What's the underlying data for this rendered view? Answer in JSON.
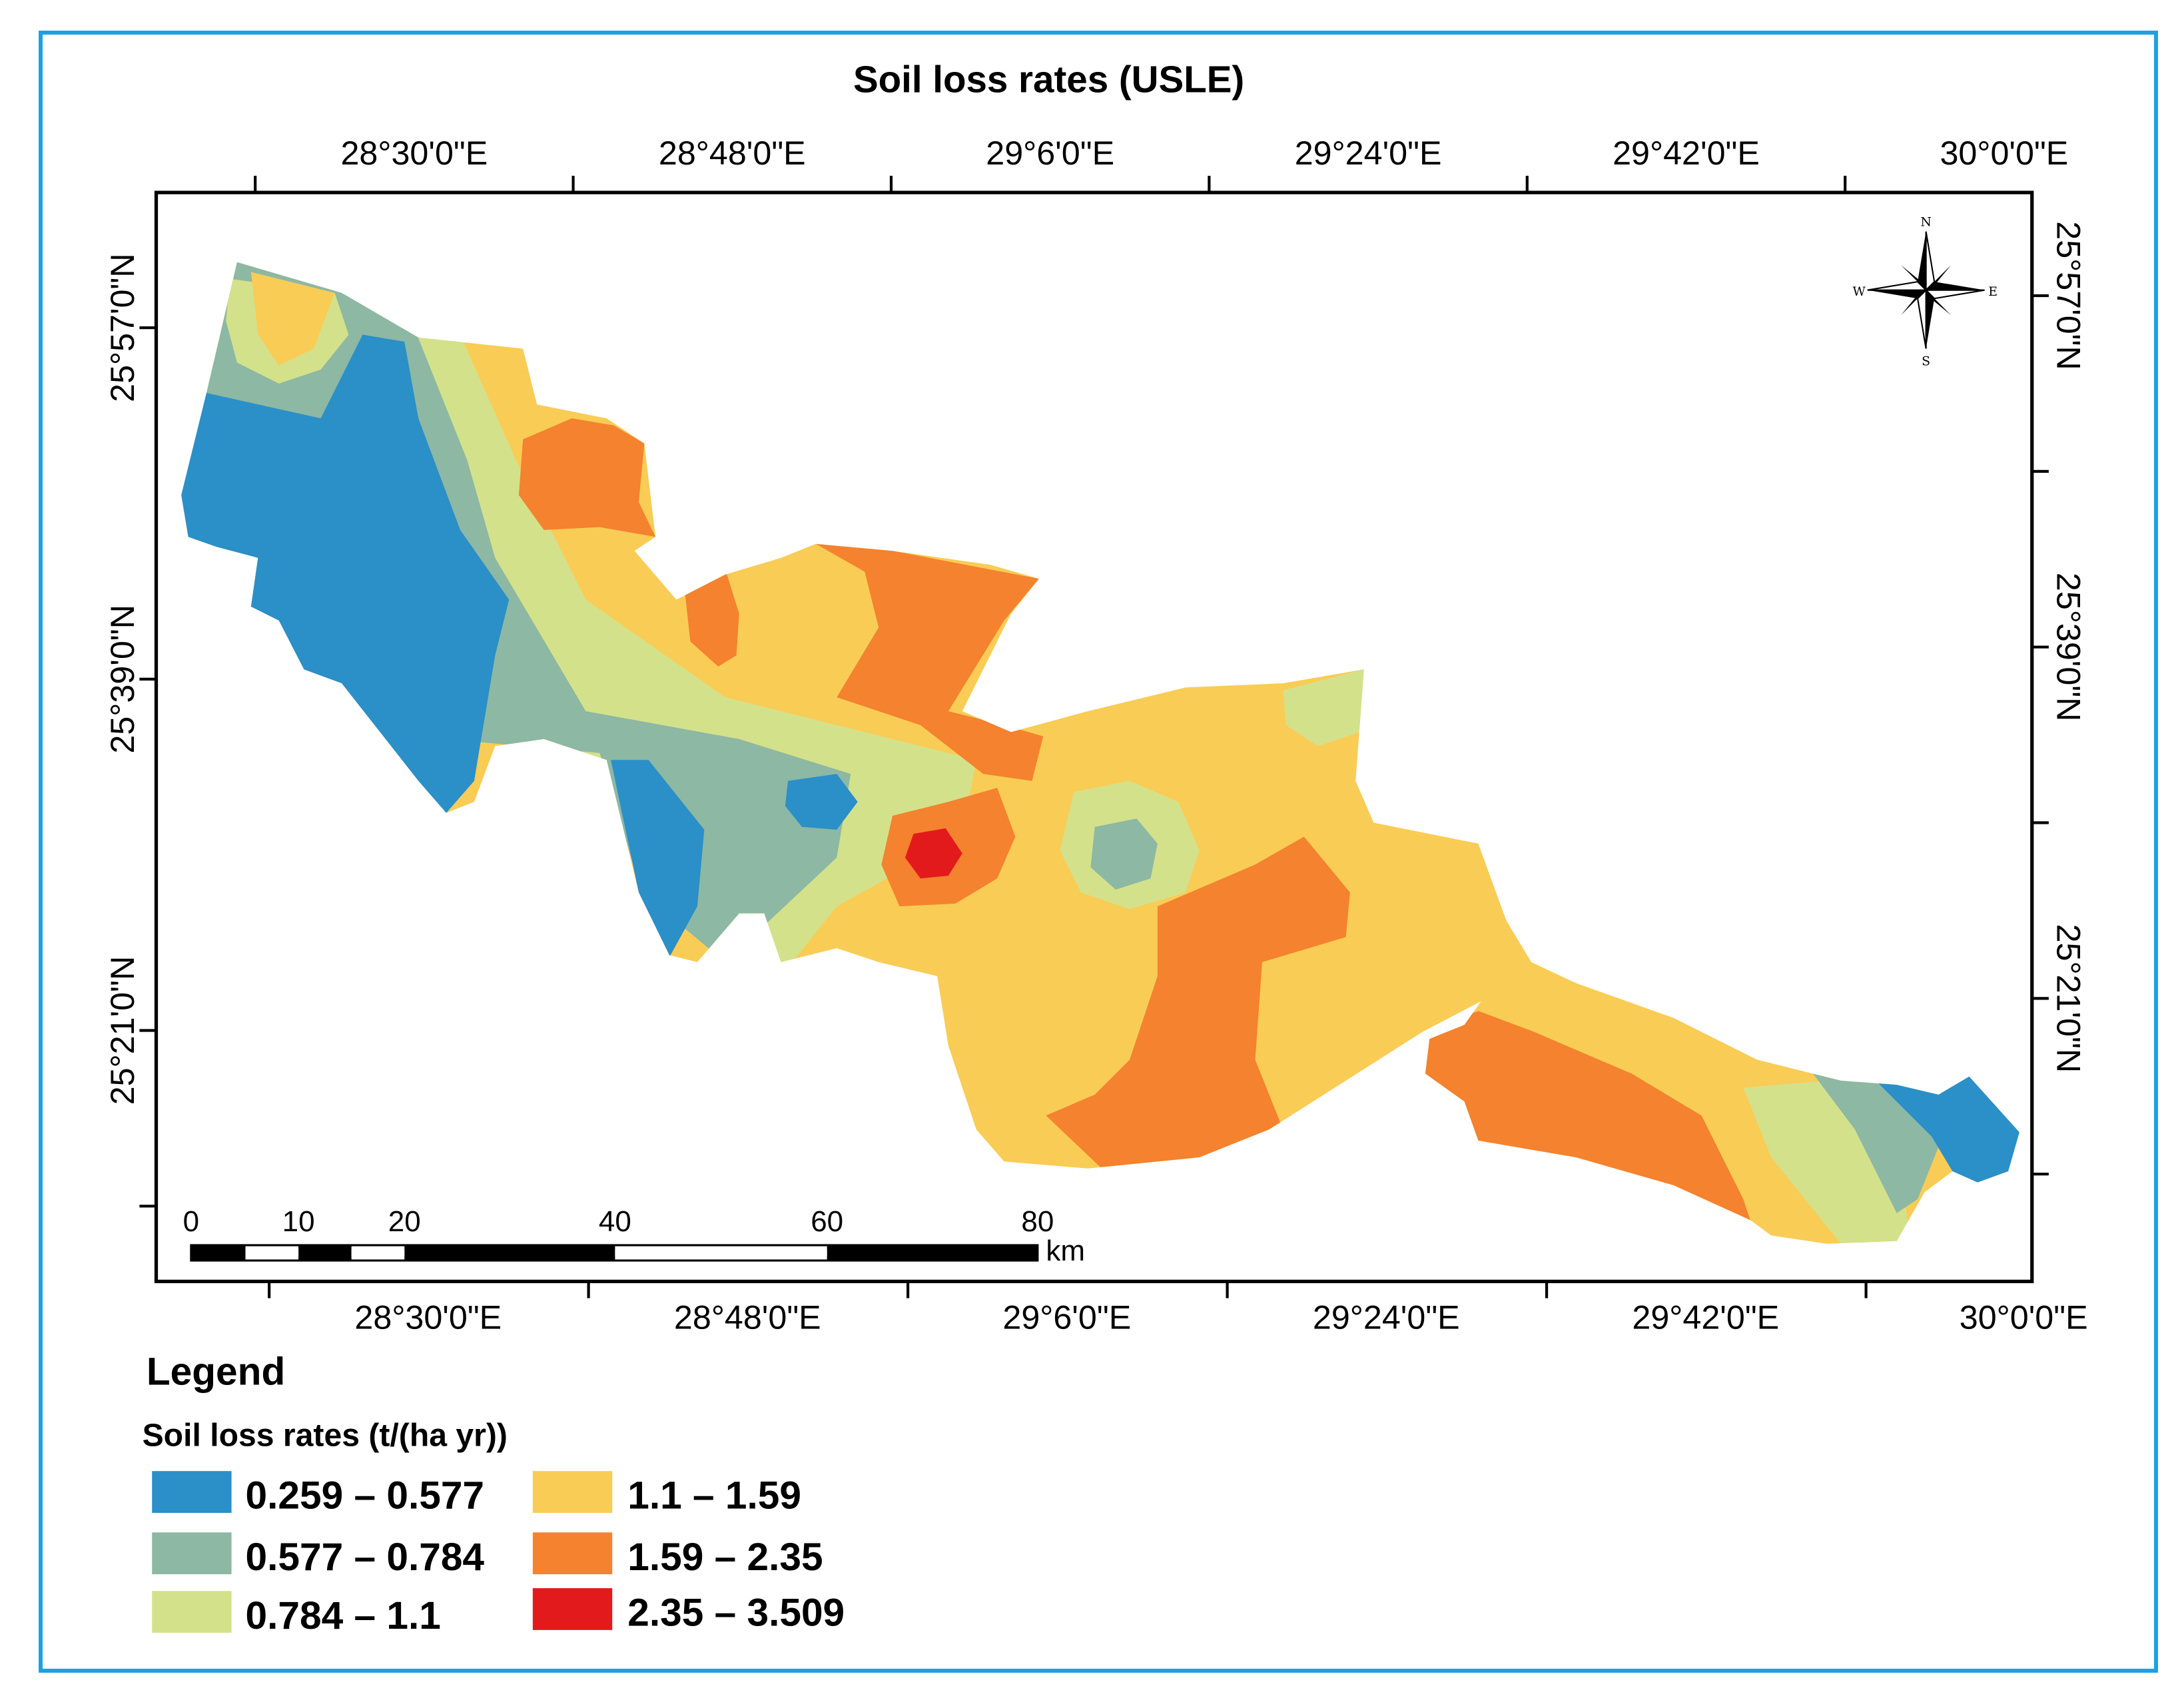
{
  "title": "Soil loss rates (USLE)",
  "graticule": {
    "top_longitudes": [
      "28°30'0\"E",
      "28°48'0\"E",
      "29°6'0\"E",
      "29°24'0\"E",
      "29°42'0\"E",
      "30°0'0\"E"
    ],
    "bottom_longitudes": [
      "28°30'0\"E",
      "28°48'0\"E",
      "29°6'0\"E",
      "29°24'0\"E",
      "29°42'0\"E",
      "30°0'0\"E"
    ],
    "left_latitudes": [
      "25°57'0\"N",
      "25°39'0\"N",
      "25°21'0\"N"
    ],
    "right_latitudes": [
      "25°57'0\"N",
      "25°39'0\"N",
      "25°21'0\"N"
    ]
  },
  "north_arrow": {
    "n": "N",
    "s": "S",
    "e": "E",
    "w": "W"
  },
  "scale_bar": {
    "ticks": [
      "0",
      "10",
      "20",
      "40",
      "60",
      "80"
    ],
    "unit": "km"
  },
  "legend": {
    "heading": "Legend",
    "subtitle": "Soil loss rates (t/(ha yr))",
    "classes": [
      {
        "label": "0.259 – 0.577",
        "color": "#2b8fc8"
      },
      {
        "label": "0.577 – 0.784",
        "color": "#8db8a3"
      },
      {
        "label": "0.784 – 1.1",
        "color": "#d4e18b"
      },
      {
        "label": "1.1 – 1.59",
        "color": "#f9cc55"
      },
      {
        "label": "1.59 – 2.35",
        "color": "#f4822e"
      },
      {
        "label": "2.35 – 3.509",
        "color": "#e31a1c"
      }
    ]
  }
}
